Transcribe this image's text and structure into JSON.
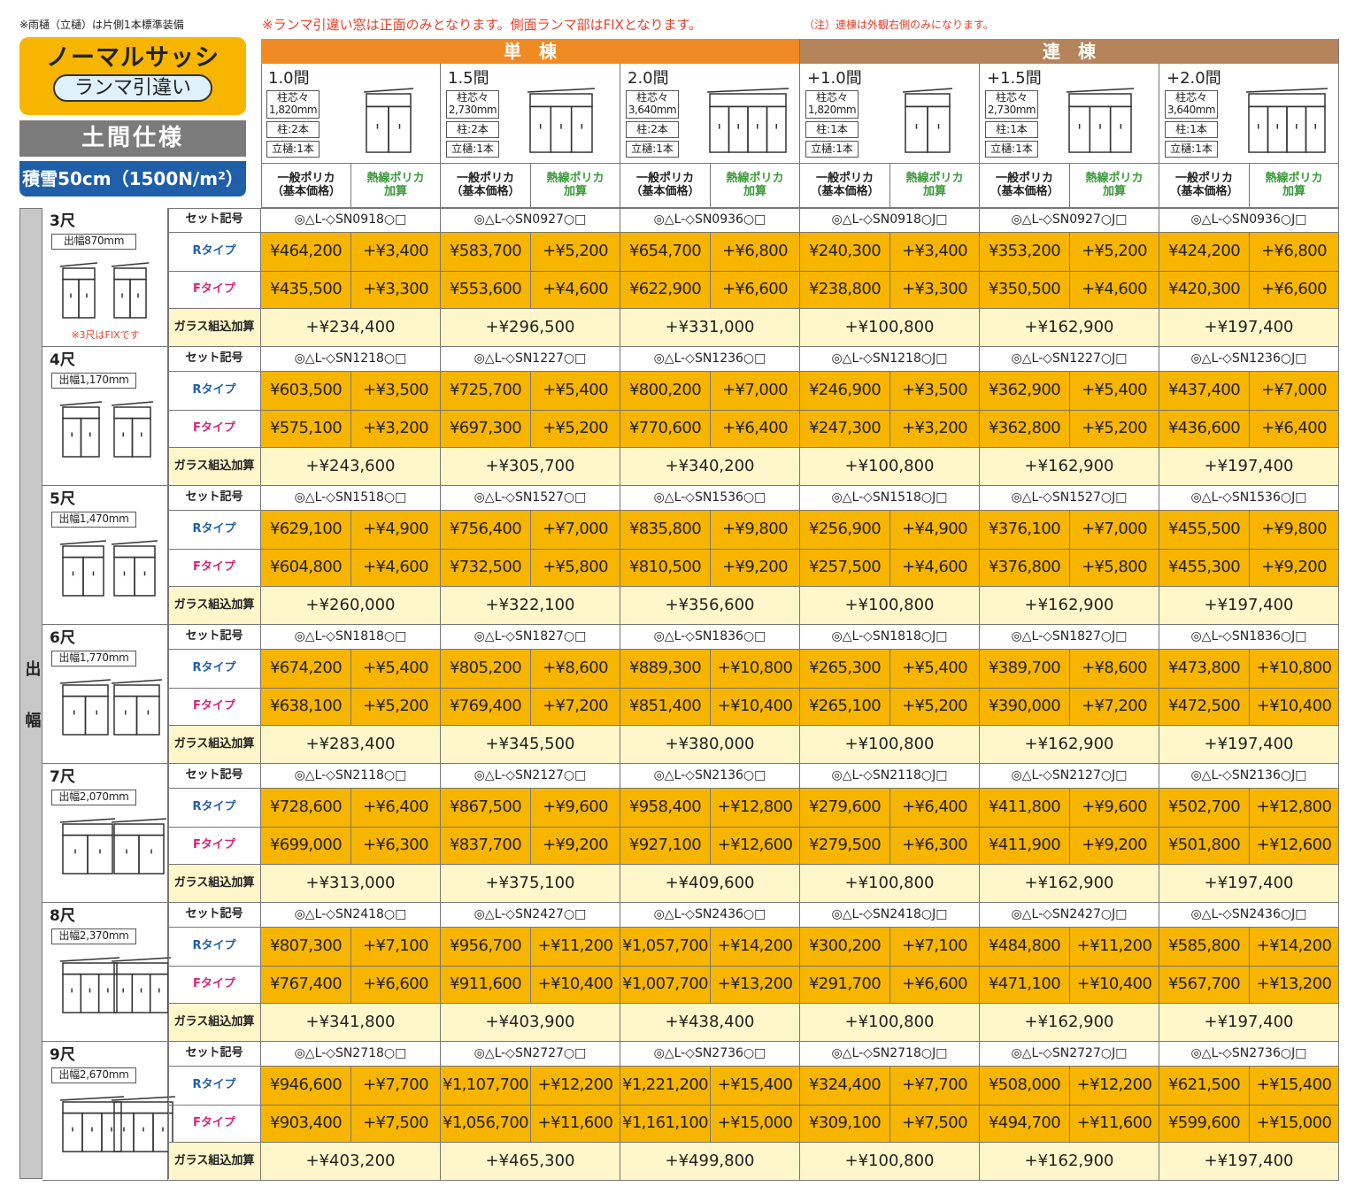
{
  "notes": {
    "gutter": "※雨樋（立樋）は片側1本標準装備",
    "ranma": "※ランマ引違い窓は正面のみとなります。側面ランマ部はFIXとなります。",
    "renmune": "（注）連棟は外観右側のみになります。"
  },
  "badge": {
    "title": "ノーマルサッシ",
    "subtitle": "ランマ引違い",
    "spec": "土間仕様",
    "snow": "積雪50cm（1500N/m²）"
  },
  "groups": [
    "単　棟",
    "連　棟"
  ],
  "columns": [
    {
      "size": "1.0間",
      "pitch_label": "柱芯々",
      "pitch": "1,820mm",
      "posts": "柱:2本",
      "gutter": "立樋:1本"
    },
    {
      "size": "1.5間",
      "pitch_label": "柱芯々",
      "pitch": "2,730mm",
      "posts": "柱:2本",
      "gutter": "立樋:1本"
    },
    {
      "size": "2.0間",
      "pitch_label": "柱芯々",
      "pitch": "3,640mm",
      "posts": "柱:2本",
      "gutter": "立樋:1本"
    },
    {
      "size": "+1.0間",
      "pitch_label": "柱芯々",
      "pitch": "1,820mm",
      "posts": "柱:1本",
      "gutter": "立樋:1本"
    },
    {
      "size": "+1.5間",
      "pitch_label": "柱芯々",
      "pitch": "2,730mm",
      "posts": "柱:1本",
      "gutter": "立樋:1本"
    },
    {
      "size": "+2.0間",
      "pitch_label": "柱芯々",
      "pitch": "3,640mm",
      "posts": "柱:1本",
      "gutter": "立樋:1本"
    }
  ],
  "price_header": {
    "base": [
      "一般ポリカ",
      "（基本価格）"
    ],
    "extra": [
      "熱線ポリカ",
      "加算"
    ]
  },
  "side_label": "出幅",
  "row_labels": {
    "code": "セット記号",
    "r": "Rタイプ",
    "f": "Fタイプ",
    "glass": "ガラス組込加算"
  },
  "sizes": [
    {
      "size": "3尺",
      "width": "出幅870mm",
      "note": "※3尺はFIXです",
      "codes": [
        "◎△L-◇SN0918○□",
        "◎△L-◇SN0927○□",
        "◎△L-◇SN0936○□",
        "◎△L-◇SN0918○J□",
        "◎△L-◇SN0927○J□",
        "◎△L-◇SN0936○J□"
      ],
      "r": [
        [
          "¥464,200",
          "+¥3,400"
        ],
        [
          "¥583,700",
          "+¥5,200"
        ],
        [
          "¥654,700",
          "+¥6,800"
        ],
        [
          "¥240,300",
          "+¥3,400"
        ],
        [
          "¥353,200",
          "+¥5,200"
        ],
        [
          "¥424,200",
          "+¥6,800"
        ]
      ],
      "f": [
        [
          "¥435,500",
          "+¥3,300"
        ],
        [
          "¥553,600",
          "+¥4,600"
        ],
        [
          "¥622,900",
          "+¥6,600"
        ],
        [
          "¥238,800",
          "+¥3,300"
        ],
        [
          "¥350,500",
          "+¥4,600"
        ],
        [
          "¥420,300",
          "+¥6,600"
        ]
      ],
      "glass": [
        "+¥234,400",
        "+¥296,500",
        "+¥331,000",
        "+¥100,800",
        "+¥162,900",
        "+¥197,400"
      ]
    },
    {
      "size": "4尺",
      "width": "出幅1,170mm",
      "codes": [
        "◎△L-◇SN1218○□",
        "◎△L-◇SN1227○□",
        "◎△L-◇SN1236○□",
        "◎△L-◇SN1218○J□",
        "◎△L-◇SN1227○J□",
        "◎△L-◇SN1236○J□"
      ],
      "r": [
        [
          "¥603,500",
          "+¥3,500"
        ],
        [
          "¥725,700",
          "+¥5,400"
        ],
        [
          "¥800,200",
          "+¥7,000"
        ],
        [
          "¥246,900",
          "+¥3,500"
        ],
        [
          "¥362,900",
          "+¥5,400"
        ],
        [
          "¥437,400",
          "+¥7,000"
        ]
      ],
      "f": [
        [
          "¥575,100",
          "+¥3,200"
        ],
        [
          "¥697,300",
          "+¥5,200"
        ],
        [
          "¥770,600",
          "+¥6,400"
        ],
        [
          "¥247,300",
          "+¥3,200"
        ],
        [
          "¥362,800",
          "+¥5,200"
        ],
        [
          "¥436,600",
          "+¥6,400"
        ]
      ],
      "glass": [
        "+¥243,600",
        "+¥305,700",
        "+¥340,200",
        "+¥100,800",
        "+¥162,900",
        "+¥197,400"
      ]
    },
    {
      "size": "5尺",
      "width": "出幅1,470mm",
      "codes": [
        "◎△L-◇SN1518○□",
        "◎△L-◇SN1527○□",
        "◎△L-◇SN1536○□",
        "◎△L-◇SN1518○J□",
        "◎△L-◇SN1527○J□",
        "◎△L-◇SN1536○J□"
      ],
      "r": [
        [
          "¥629,100",
          "+¥4,900"
        ],
        [
          "¥756,400",
          "+¥7,000"
        ],
        [
          "¥835,800",
          "+¥9,800"
        ],
        [
          "¥256,900",
          "+¥4,900"
        ],
        [
          "¥376,100",
          "+¥7,000"
        ],
        [
          "¥455,500",
          "+¥9,800"
        ]
      ],
      "f": [
        [
          "¥604,800",
          "+¥4,600"
        ],
        [
          "¥732,500",
          "+¥5,800"
        ],
        [
          "¥810,500",
          "+¥9,200"
        ],
        [
          "¥257,500",
          "+¥4,600"
        ],
        [
          "¥376,800",
          "+¥5,800"
        ],
        [
          "¥455,300",
          "+¥9,200"
        ]
      ],
      "glass": [
        "+¥260,000",
        "+¥322,100",
        "+¥356,600",
        "+¥100,800",
        "+¥162,900",
        "+¥197,400"
      ]
    },
    {
      "size": "6尺",
      "width": "出幅1,770mm",
      "codes": [
        "◎△L-◇SN1818○□",
        "◎△L-◇SN1827○□",
        "◎△L-◇SN1836○□",
        "◎△L-◇SN1818○J□",
        "◎△L-◇SN1827○J□",
        "◎△L-◇SN1836○J□"
      ],
      "r": [
        [
          "¥674,200",
          "+¥5,400"
        ],
        [
          "¥805,200",
          "+¥8,600"
        ],
        [
          "¥889,300",
          "+¥10,800"
        ],
        [
          "¥265,300",
          "+¥5,400"
        ],
        [
          "¥389,700",
          "+¥8,600"
        ],
        [
          "¥473,800",
          "+¥10,800"
        ]
      ],
      "f": [
        [
          "¥638,100",
          "+¥5,200"
        ],
        [
          "¥769,400",
          "+¥7,200"
        ],
        [
          "¥851,400",
          "+¥10,400"
        ],
        [
          "¥265,100",
          "+¥5,200"
        ],
        [
          "¥390,000",
          "+¥7,200"
        ],
        [
          "¥472,500",
          "+¥10,400"
        ]
      ],
      "glass": [
        "+¥283,400",
        "+¥345,500",
        "+¥380,000",
        "+¥100,800",
        "+¥162,900",
        "+¥197,400"
      ]
    },
    {
      "size": "7尺",
      "width": "出幅2,070mm",
      "codes": [
        "◎△L-◇SN2118○□",
        "◎△L-◇SN2127○□",
        "◎△L-◇SN2136○□",
        "◎△L-◇SN2118○J□",
        "◎△L-◇SN2127○J□",
        "◎△L-◇SN2136○J□"
      ],
      "r": [
        [
          "¥728,600",
          "+¥6,400"
        ],
        [
          "¥867,500",
          "+¥9,600"
        ],
        [
          "¥958,400",
          "+¥12,800"
        ],
        [
          "¥279,600",
          "+¥6,400"
        ],
        [
          "¥411,800",
          "+¥9,600"
        ],
        [
          "¥502,700",
          "+¥12,800"
        ]
      ],
      "f": [
        [
          "¥699,000",
          "+¥6,300"
        ],
        [
          "¥837,700",
          "+¥9,200"
        ],
        [
          "¥927,100",
          "+¥12,600"
        ],
        [
          "¥279,500",
          "+¥6,300"
        ],
        [
          "¥411,900",
          "+¥9,200"
        ],
        [
          "¥501,800",
          "+¥12,600"
        ]
      ],
      "glass": [
        "+¥313,000",
        "+¥375,100",
        "+¥409,600",
        "+¥100,800",
        "+¥162,900",
        "+¥197,400"
      ]
    },
    {
      "size": "8尺",
      "width": "出幅2,370mm",
      "codes": [
        "◎△L-◇SN2418○□",
        "◎△L-◇SN2427○□",
        "◎△L-◇SN2436○□",
        "◎△L-◇SN2418○J□",
        "◎△L-◇SN2427○J□",
        "◎△L-◇SN2436○J□"
      ],
      "r": [
        [
          "¥807,300",
          "+¥7,100"
        ],
        [
          "¥956,700",
          "+¥11,200"
        ],
        [
          "¥1,057,700",
          "+¥14,200"
        ],
        [
          "¥300,200",
          "+¥7,100"
        ],
        [
          "¥484,800",
          "+¥11,200"
        ],
        [
          "¥585,800",
          "+¥14,200"
        ]
      ],
      "f": [
        [
          "¥767,400",
          "+¥6,600"
        ],
        [
          "¥911,600",
          "+¥10,400"
        ],
        [
          "¥1,007,700",
          "+¥13,200"
        ],
        [
          "¥291,700",
          "+¥6,600"
        ],
        [
          "¥471,100",
          "+¥10,400"
        ],
        [
          "¥567,700",
          "+¥13,200"
        ]
      ],
      "glass": [
        "+¥341,800",
        "+¥403,900",
        "+¥438,400",
        "+¥100,800",
        "+¥162,900",
        "+¥197,400"
      ]
    },
    {
      "size": "9尺",
      "width": "出幅2,670mm",
      "codes": [
        "◎△L-◇SN2718○□",
        "◎△L-◇SN2727○□",
        "◎△L-◇SN2736○□",
        "◎△L-◇SN2718○J□",
        "◎△L-◇SN2727○J□",
        "◎△L-◇SN2736○J□"
      ],
      "r": [
        [
          "¥946,600",
          "+¥7,700"
        ],
        [
          "¥1,107,700",
          "+¥12,200"
        ],
        [
          "¥1,221,200",
          "+¥15,400"
        ],
        [
          "¥324,400",
          "+¥7,700"
        ],
        [
          "¥508,000",
          "+¥12,200"
        ],
        [
          "¥621,500",
          "+¥15,400"
        ]
      ],
      "f": [
        [
          "¥903,400",
          "+¥7,500"
        ],
        [
          "¥1,056,700",
          "+¥11,600"
        ],
        [
          "¥1,161,100",
          "+¥15,000"
        ],
        [
          "¥309,100",
          "+¥7,500"
        ],
        [
          "¥494,700",
          "+¥11,600"
        ],
        [
          "¥599,600",
          "+¥15,000"
        ]
      ],
      "glass": [
        "+¥403,200",
        "+¥465,300",
        "+¥499,800",
        "+¥100,800",
        "+¥162,900",
        "+¥197,400"
      ]
    }
  ]
}
